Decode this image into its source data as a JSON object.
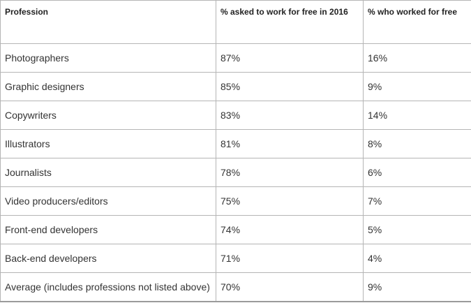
{
  "table": {
    "headers": [
      "Profession",
      "% asked to work for free in 2016",
      "% who worked for free"
    ],
    "rows": [
      [
        "Photographers",
        "87%",
        "16%"
      ],
      [
        "Graphic designers",
        "85%",
        "9%"
      ],
      [
        "Copywriters",
        "83%",
        "14%"
      ],
      [
        "Illustrators",
        "81%",
        "8%"
      ],
      [
        "Journalists",
        "78%",
        "6%"
      ],
      [
        "Video producers/editors",
        "75%",
        "7%"
      ],
      [
        "Front-end developers",
        "74%",
        "5%"
      ],
      [
        "Back-end developers",
        "71%",
        "4%"
      ],
      [
        "Average (includes professions not listed above)",
        "70%",
        "9%"
      ]
    ]
  }
}
